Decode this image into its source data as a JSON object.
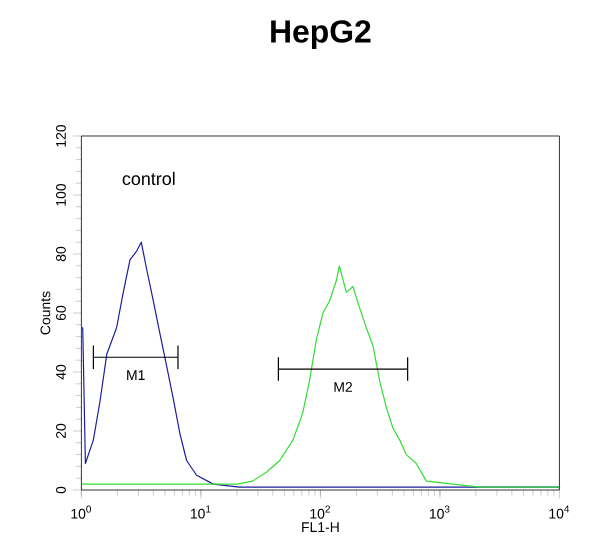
{
  "chart_data": {
    "type": "line",
    "title": "HepG2",
    "xlabel": "FL1-H",
    "ylabel": "Counts",
    "log": "x",
    "xlim": [
      1,
      10000
    ],
    "ylim": [
      0,
      120
    ],
    "xticks": [
      {
        "value": 1,
        "label": "10$^{0}$"
      },
      {
        "value": 10,
        "label": "10$^{1}$"
      },
      {
        "value": 100,
        "label": "10$^{2}$"
      },
      {
        "value": 1000,
        "label": "10$^{3}$"
      },
      {
        "value": 10000,
        "label": "10$^{4}$"
      }
    ],
    "yticks": [
      0,
      20,
      40,
      60,
      80,
      100,
      120
    ],
    "series": [
      {
        "color": "#1c1ca0",
        "x": [
          1.0,
          1.026,
          1.08,
          1.26,
          1.43,
          1.63,
          1.97,
          2.24,
          2.55,
          2.9,
          3.17,
          3.51,
          4.0,
          4.54,
          5.17,
          5.87,
          6.68,
          7.59,
          9.2,
          12.7,
          21,
          127,
          1650,
          10000
        ],
        "values": [
          55,
          55,
          9,
          17,
          30,
          46,
          55,
          67,
          78,
          81,
          84,
          75,
          64,
          53,
          42,
          31,
          19,
          10,
          5,
          2,
          1,
          1,
          1,
          1
        ]
      },
      {
        "color": "#33dd33",
        "x": [
          1.0,
          5,
          20,
          27,
          35.3,
          45.7,
          59,
          71,
          81,
          92.5,
          105,
          119,
          136,
          144,
          165,
          187,
          212,
          242,
          275,
          313,
          356,
          404,
          460,
          522,
          635,
          770,
          1290,
          2160,
          10000
        ],
        "values": [
          2,
          2,
          2,
          3,
          6,
          10,
          17,
          26,
          37,
          51,
          60,
          64,
          71,
          76,
          67,
          69,
          62,
          55,
          49,
          37,
          28,
          21,
          17,
          12,
          9,
          3,
          2,
          1,
          1
        ]
      },
      {
        "color": "#000000",
        "x": [
          1.26,
          6.43
        ],
        "values": [
          45,
          45
        ],
        "errors": [
          4,
          4
        ]
      },
      {
        "color": "#000000",
        "x": [
          44.5,
          537
        ],
        "values": [
          41,
          41
        ],
        "errors": [
          4,
          4
        ]
      }
    ],
    "annotations": [
      "control",
      "M1",
      "M2"
    ]
  }
}
